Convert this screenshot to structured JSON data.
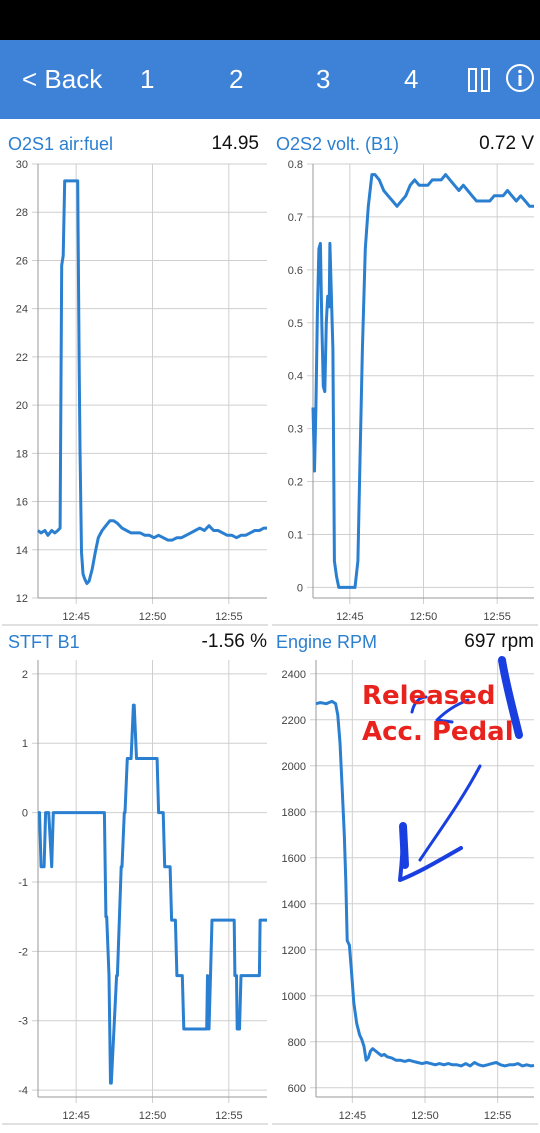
{
  "nav": {
    "back_label": "< Back",
    "page_tabs": [
      "1",
      "2",
      "3",
      "4"
    ],
    "pause_icon": "pause-icon",
    "info_icon": "info-icon",
    "bar_color": "#3d82d6"
  },
  "panels": {
    "o2s1": {
      "title": "O2S1 air:fuel",
      "value": "14.95"
    },
    "o2s2": {
      "title": "O2S2 volt. (B1)",
      "value": "0.72 V"
    },
    "stft": {
      "title": "STFT B1",
      "value": "-1.56 %"
    },
    "rpm": {
      "title": "Engine RPM",
      "value": "697 rpm"
    }
  },
  "annotation": {
    "line1": "Released",
    "line2": "Acc. Pedal",
    "text_color": "#e8231e",
    "ink_color": "#1a3fe0"
  },
  "chart_data": [
    {
      "type": "line",
      "title": "O2S1 air:fuel",
      "line_color": "#2a7fd0",
      "grid": true,
      "xlim": [
        0,
        15
      ],
      "x_tick_labels": [
        "12:45",
        "12:50",
        "12:55"
      ],
      "x_ticks": [
        2.5,
        7.5,
        12.5
      ],
      "ylim": [
        12,
        30
      ],
      "y_ticks": [
        12,
        14,
        16,
        18,
        20,
        22,
        24,
        26,
        28,
        30
      ],
      "x": [
        0,
        0.2,
        0.45,
        0.65,
        0.9,
        1.1,
        1.3,
        1.45,
        1.55,
        1.65,
        1.75,
        1.9,
        2.6,
        2.7,
        2.75,
        2.85,
        2.95,
        3.05,
        3.2,
        3.35,
        3.55,
        3.75,
        3.95,
        4.2,
        4.45,
        4.7,
        4.95,
        5.2,
        5.5,
        5.8,
        6.1,
        6.4,
        6.7,
        7.0,
        7.3,
        7.6,
        7.9,
        8.2,
        8.5,
        8.8,
        9.1,
        9.4,
        9.7,
        10.0,
        10.3,
        10.6,
        10.9,
        11.2,
        11.5,
        11.8,
        12.1,
        12.4,
        12.7,
        13.0,
        13.3,
        13.6,
        13.9,
        14.2,
        14.5,
        14.8,
        15.0
      ],
      "y": [
        14.8,
        14.7,
        14.8,
        14.6,
        14.8,
        14.7,
        14.8,
        14.9,
        25.8,
        26.2,
        29.3,
        29.3,
        29.3,
        21.5,
        18.2,
        13.9,
        13.0,
        12.8,
        12.6,
        12.7,
        13.2,
        13.9,
        14.5,
        14.8,
        15.0,
        15.2,
        15.2,
        15.1,
        14.9,
        14.8,
        14.7,
        14.7,
        14.7,
        14.6,
        14.6,
        14.5,
        14.6,
        14.5,
        14.4,
        14.4,
        14.5,
        14.5,
        14.6,
        14.7,
        14.8,
        14.9,
        14.8,
        15.0,
        14.8,
        14.8,
        14.7,
        14.6,
        14.6,
        14.5,
        14.6,
        14.6,
        14.7,
        14.8,
        14.8,
        14.9,
        14.9
      ]
    },
    {
      "type": "line",
      "title": "O2S2 volt. (B1)",
      "line_color": "#2a7fd0",
      "grid": true,
      "xlim": [
        0,
        15
      ],
      "x_tick_labels": [
        "12:45",
        "12:50",
        "12:55"
      ],
      "x_ticks": [
        2.5,
        7.5,
        12.5
      ],
      "ylim": [
        -0.02,
        0.8
      ],
      "y_ticks": [
        0,
        0.1,
        0.2,
        0.3,
        0.4,
        0.5,
        0.6,
        0.7,
        0.8
      ],
      "y_tick_labels": [
        "0",
        "0.1",
        "0.2",
        "0.3",
        "0.4",
        "0.5",
        "0.6",
        "0.7",
        "0.8"
      ],
      "x": [
        0,
        0.1,
        0.2,
        0.3,
        0.4,
        0.5,
        0.6,
        0.7,
        0.8,
        0.9,
        1.0,
        1.1,
        1.15,
        1.25,
        1.35,
        1.45,
        1.6,
        1.75,
        1.9,
        2.1,
        2.3,
        2.6,
        2.85,
        3.05,
        3.2,
        3.35,
        3.55,
        3.75,
        4.0,
        4.2,
        4.5,
        4.8,
        5.1,
        5.4,
        5.7,
        6.0,
        6.3,
        6.6,
        6.9,
        7.2,
        7.5,
        7.8,
        8.1,
        8.4,
        8.7,
        9.0,
        9.3,
        9.6,
        9.9,
        10.2,
        10.5,
        10.8,
        11.1,
        11.4,
        11.7,
        12.0,
        12.3,
        12.6,
        12.9,
        13.2,
        13.5,
        13.8,
        14.1,
        14.4,
        14.7,
        15.0
      ],
      "y": [
        0.34,
        0.22,
        0.34,
        0.52,
        0.64,
        0.65,
        0.5,
        0.38,
        0.37,
        0.5,
        0.55,
        0.53,
        0.65,
        0.55,
        0.45,
        0.05,
        0.02,
        0.0,
        0.0,
        0.0,
        0.0,
        0.0,
        0.0,
        0.05,
        0.25,
        0.45,
        0.64,
        0.72,
        0.78,
        0.78,
        0.77,
        0.75,
        0.74,
        0.73,
        0.72,
        0.73,
        0.74,
        0.76,
        0.77,
        0.76,
        0.76,
        0.76,
        0.77,
        0.77,
        0.77,
        0.78,
        0.77,
        0.76,
        0.75,
        0.76,
        0.75,
        0.74,
        0.73,
        0.73,
        0.73,
        0.73,
        0.74,
        0.74,
        0.74,
        0.75,
        0.74,
        0.73,
        0.74,
        0.73,
        0.72,
        0.72
      ]
    },
    {
      "type": "line",
      "title": "STFT B1",
      "line_color": "#2a7fd0",
      "grid": true,
      "xlim": [
        0,
        15
      ],
      "x_tick_labels": [
        "12:45",
        "12:50",
        "12:55"
      ],
      "x_ticks": [
        2.5,
        7.5,
        12.5
      ],
      "ylim": [
        -4.1,
        2.2
      ],
      "y_ticks": [
        -4,
        -3,
        -2,
        -1,
        0,
        1,
        2
      ],
      "x": [
        0,
        0.1,
        0.2,
        0.25,
        0.4,
        0.5,
        0.55,
        0.7,
        0.9,
        1.0,
        1.05,
        1.15,
        1.25,
        1.3,
        4.15,
        4.2,
        4.35,
        4.45,
        4.5,
        4.65,
        4.75,
        4.8,
        5.15,
        5.2,
        5.45,
        5.5,
        5.65,
        5.7,
        5.85,
        5.9,
        6.05,
        6.1,
        6.25,
        6.3,
        6.45,
        6.5,
        6.7,
        6.8,
        7.8,
        7.9,
        8.2,
        8.3,
        8.65,
        8.75,
        9.0,
        9.1,
        9.45,
        9.55,
        9.7,
        9.8,
        9.9,
        10.0,
        10.1,
        11.05,
        11.1,
        11.2,
        11.3,
        11.4,
        11.5,
        11.6,
        11.7,
        12.0,
        12.1,
        12.85,
        12.9,
        13.0,
        13.05,
        13.2,
        13.3,
        13.55,
        13.6,
        14.5,
        14.55,
        14.85,
        14.9,
        15.0
      ],
      "y": [
        0,
        0,
        -0.78,
        -0.78,
        -0.78,
        0,
        0,
        0,
        -0.78,
        0,
        0,
        0,
        0,
        0,
        0,
        0,
        0,
        -1.5,
        -1.5,
        -2.35,
        -3.9,
        -3.9,
        -2.35,
        -2.35,
        -0.78,
        -0.78,
        0,
        0,
        0.78,
        0.78,
        0.78,
        0.78,
        1.55,
        1.55,
        0.78,
        0.78,
        0.78,
        0.78,
        0.78,
        0,
        0,
        -0.78,
        -0.78,
        -1.55,
        -1.55,
        -2.35,
        -2.35,
        -3.12,
        -3.12,
        -3.12,
        -3.12,
        -3.12,
        -3.12,
        -3.12,
        -2.35,
        -3.12,
        -2.35,
        -1.55,
        -1.55,
        -1.55,
        -1.55,
        -1.55,
        -1.55,
        -1.55,
        -2.35,
        -2.35,
        -3.12,
        -3.12,
        -2.35,
        -2.35,
        -2.35,
        -2.35,
        -1.55,
        -1.55,
        -1.55,
        -1.55
      ]
    },
    {
      "type": "line",
      "title": "Engine RPM",
      "line_color": "#2a7fd0",
      "grid": true,
      "xlim": [
        0,
        15
      ],
      "x_tick_labels": [
        "12:45",
        "12:50",
        "12:55"
      ],
      "x_ticks": [
        2.5,
        7.5,
        12.5
      ],
      "ylim": [
        560,
        2460
      ],
      "y_ticks": [
        600,
        800,
        1000,
        1200,
        1400,
        1600,
        1800,
        2000,
        2200,
        2400
      ],
      "x": [
        0,
        0.3,
        0.7,
        1.1,
        1.35,
        1.5,
        1.65,
        1.8,
        1.95,
        2.05,
        2.15,
        2.3,
        2.45,
        2.6,
        2.8,
        3.0,
        3.15,
        3.3,
        3.45,
        3.6,
        3.75,
        3.9,
        4.1,
        4.3,
        4.5,
        4.7,
        4.9,
        5.2,
        5.5,
        5.8,
        6.1,
        6.4,
        6.7,
        7.0,
        7.3,
        7.6,
        7.9,
        8.2,
        8.5,
        8.8,
        9.1,
        9.4,
        9.7,
        10.0,
        10.3,
        10.6,
        10.9,
        11.2,
        11.5,
        11.8,
        12.1,
        12.4,
        12.7,
        13.0,
        13.3,
        13.6,
        13.9,
        14.2,
        14.5,
        14.8,
        15.0
      ],
      "y": [
        2270,
        2275,
        2270,
        2280,
        2270,
        2220,
        2100,
        1900,
        1700,
        1500,
        1240,
        1220,
        1100,
        970,
        880,
        830,
        810,
        780,
        720,
        730,
        760,
        770,
        760,
        750,
        740,
        745,
        735,
        730,
        720,
        720,
        715,
        720,
        715,
        710,
        705,
        710,
        705,
        700,
        705,
        700,
        705,
        700,
        700,
        695,
        705,
        695,
        710,
        700,
        695,
        700,
        705,
        710,
        700,
        695,
        700,
        700,
        705,
        695,
        700,
        695,
        697
      ]
    }
  ]
}
